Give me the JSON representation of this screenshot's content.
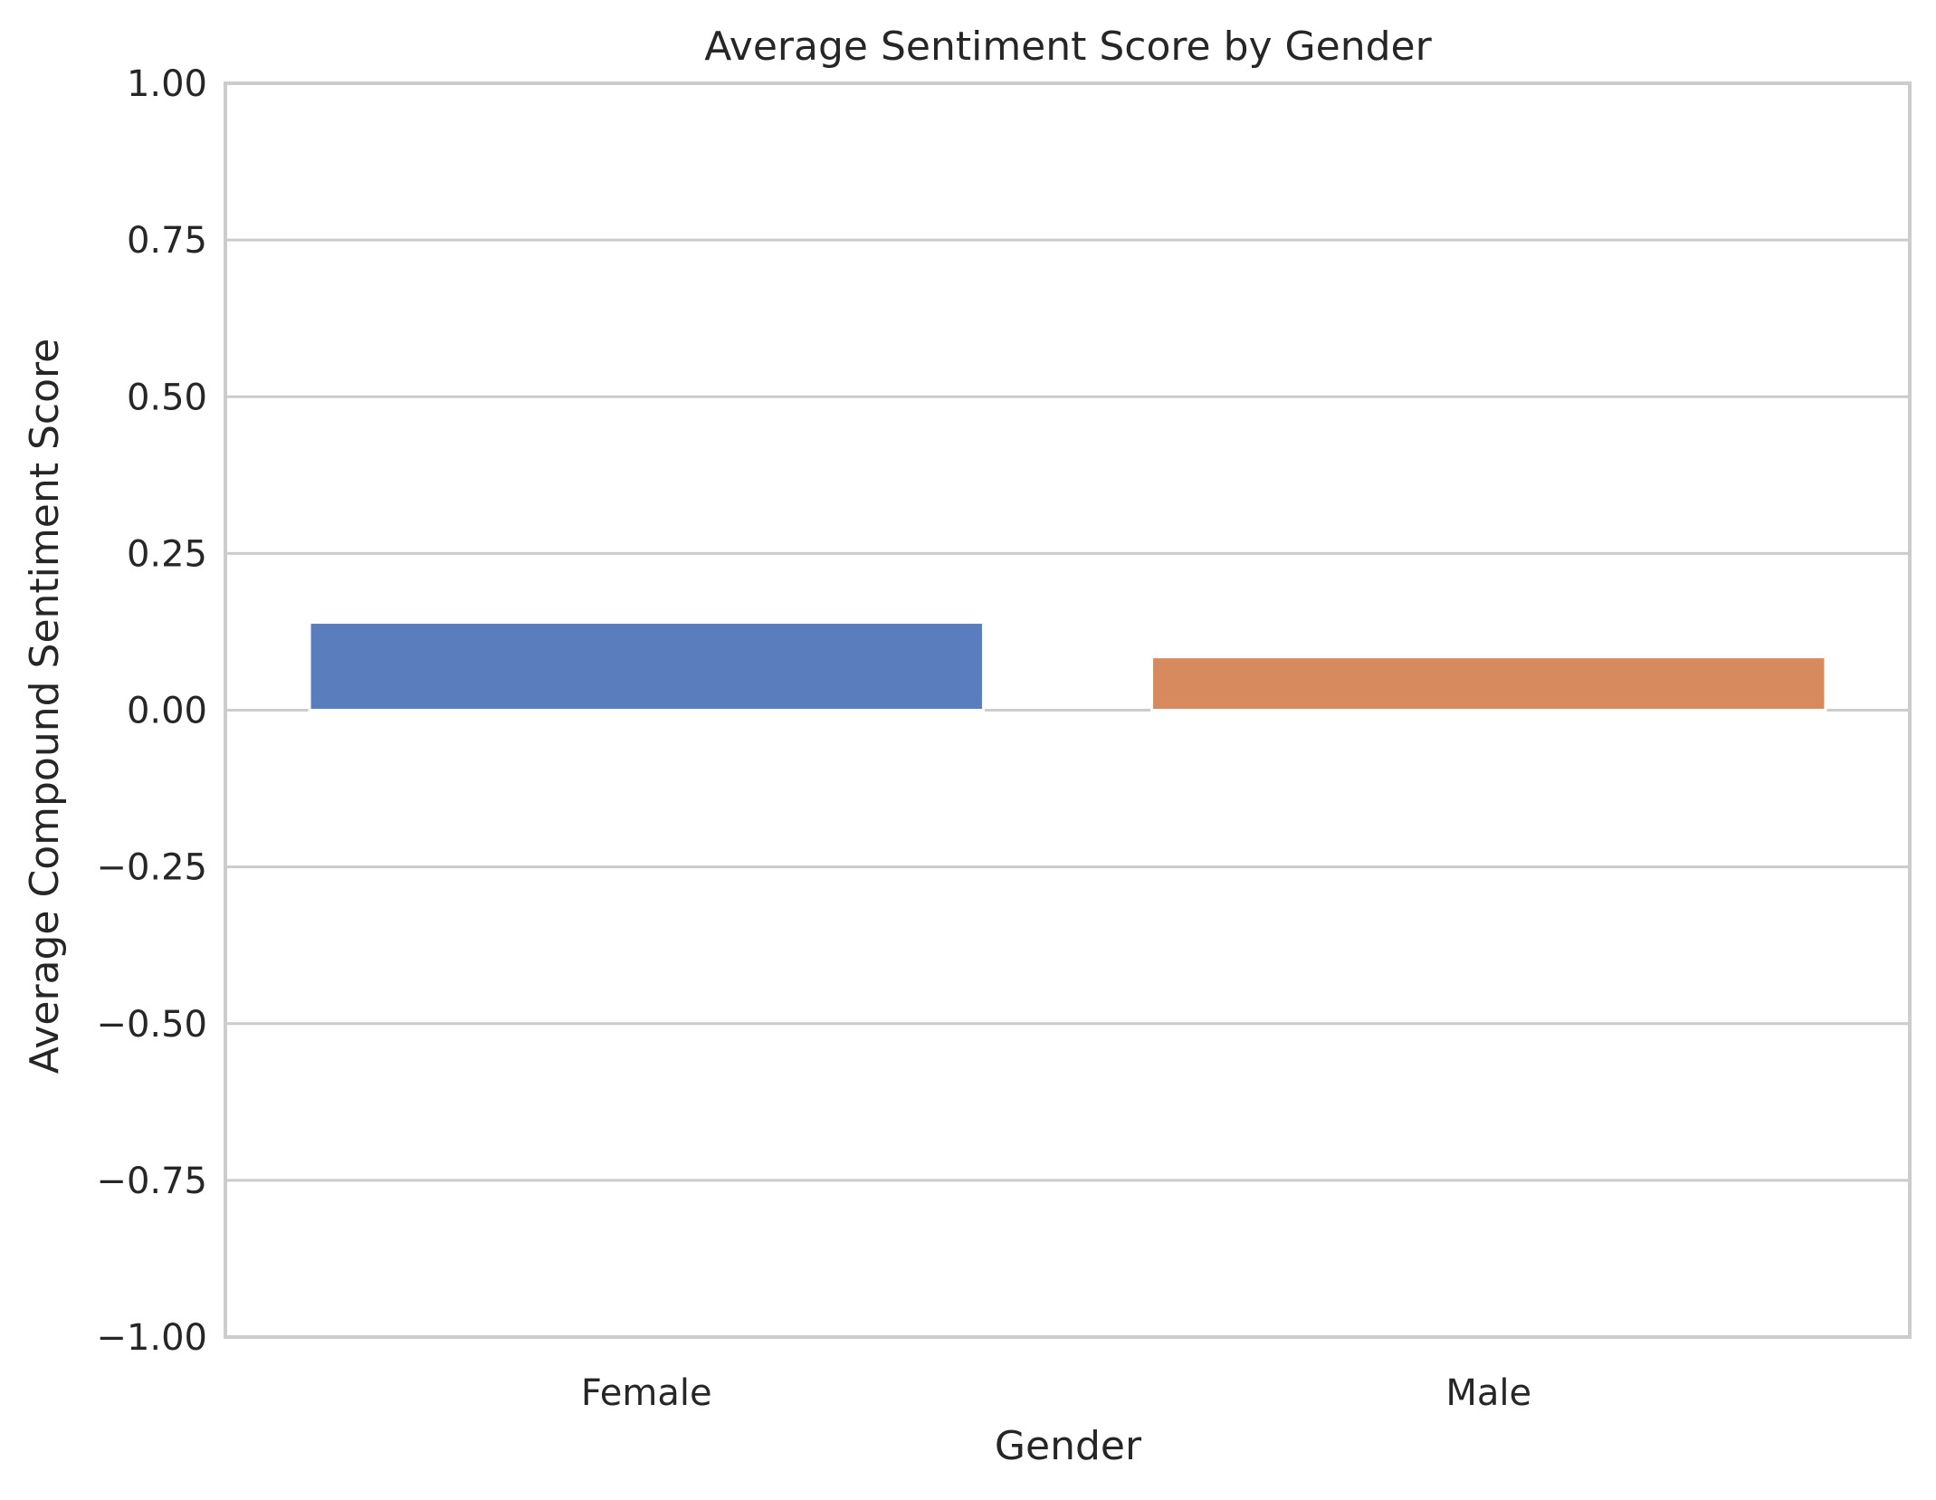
{
  "chart_data": {
    "type": "bar",
    "title": "Average Sentiment Score by Gender",
    "xlabel": "Gender",
    "ylabel": "Average Compound Sentiment Score",
    "categories": [
      "Female",
      "Male"
    ],
    "values": [
      0.14,
      0.085
    ],
    "colors": [
      "#5a7dbe",
      "#d88a5f"
    ],
    "ylim": [
      -1.0,
      1.0
    ],
    "yticks": [
      1.0,
      0.75,
      0.5,
      0.25,
      0.0,
      -0.25,
      -0.5,
      -0.75,
      -1.0
    ],
    "ytick_labels": [
      "1.00",
      "0.75",
      "0.50",
      "0.25",
      "0.00",
      "−0.25",
      "−0.50",
      "−0.75",
      "−1.00"
    ],
    "grid": true,
    "grid_color": "#cccccc",
    "spine_color": "#cccccc"
  }
}
